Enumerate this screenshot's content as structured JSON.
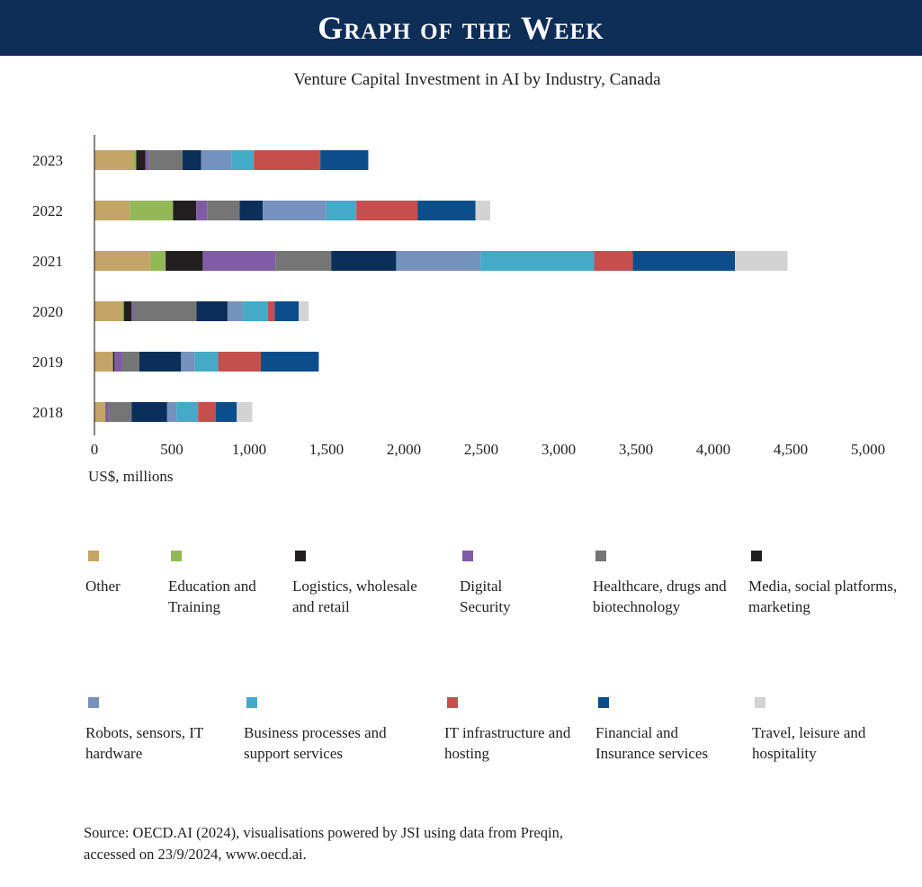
{
  "banner": {
    "title": "Graph of the Week"
  },
  "chart_data": {
    "type": "bar",
    "orientation": "horizontal",
    "stacked": true,
    "title": "Venture Capital Investment in AI by Industry, Canada",
    "xlabel": "US$, millions",
    "ylabel": "",
    "xlim": [
      0,
      5000
    ],
    "x_ticks": [
      "0",
      "500",
      "1,000",
      "1,500",
      "2,000",
      "2,500",
      "3,000",
      "3,500",
      "4,000",
      "4,500",
      "5,000"
    ],
    "categories": [
      "2023",
      "2022",
      "2021",
      "2020",
      "2019",
      "2018"
    ],
    "grid": false,
    "legend_position": "bottom",
    "series": [
      {
        "name": "Other",
        "color": "#c4a567",
        "values": [
          250,
          228,
          360,
          180,
          120,
          70
        ]
      },
      {
        "name": "Education and Training",
        "color": "#93b957",
        "values": [
          20,
          280,
          100,
          10,
          0,
          0
        ]
      },
      {
        "name": "Logistics, wholesale and retail",
        "color": "#231f20",
        "values": [
          60,
          150,
          240,
          50,
          10,
          0
        ]
      },
      {
        "name": "Digital Security",
        "color": "#7f5ca5",
        "values": [
          20,
          70,
          470,
          10,
          50,
          20
        ]
      },
      {
        "name": "Healthcare, drugs and biotechnology",
        "color": "#757575",
        "values": [
          220,
          210,
          360,
          410,
          110,
          150
        ]
      },
      {
        "name": "Media, social platforms, marketing",
        "color": "#1f1f1f",
        "values": [
          0,
          0,
          0,
          0,
          0,
          0
        ]
      },
      {
        "name": "Robots, sensors, IT hardware",
        "color": "#7591bd",
        "values": [
          195,
          410,
          545,
          100,
          90,
          60
        ]
      },
      {
        "name": "Business processes and support services",
        "color": "#44aac8",
        "values": [
          145,
          195,
          735,
          160,
          150,
          140
        ]
      },
      {
        "name": "IT infrastructure and hosting",
        "color": "#c54f4d",
        "values": [
          430,
          395,
          250,
          45,
          275,
          115
        ]
      },
      {
        "name": "Financial and Insurance services",
        "color": "#0b4e8b",
        "values": [
          310,
          375,
          660,
          155,
          375,
          135
        ]
      },
      {
        "name": "Travel, leisure and hospitality",
        "color": "#d3d3d3",
        "values": [
          0,
          95,
          340,
          65,
          0,
          100
        ]
      }
    ],
    "extra_navy_segments": [
      120,
      150,
      420,
      200,
      270,
      230
    ],
    "extra_navy_color": "#0b2f5a",
    "extra_navy_after_series_index": 4
  },
  "source": {
    "line1": "Source: OECD.AI (2024), visualisations powered by JSI using data from Preqin,",
    "line2": "accessed on 23/9/2024, www.oecd.ai."
  }
}
